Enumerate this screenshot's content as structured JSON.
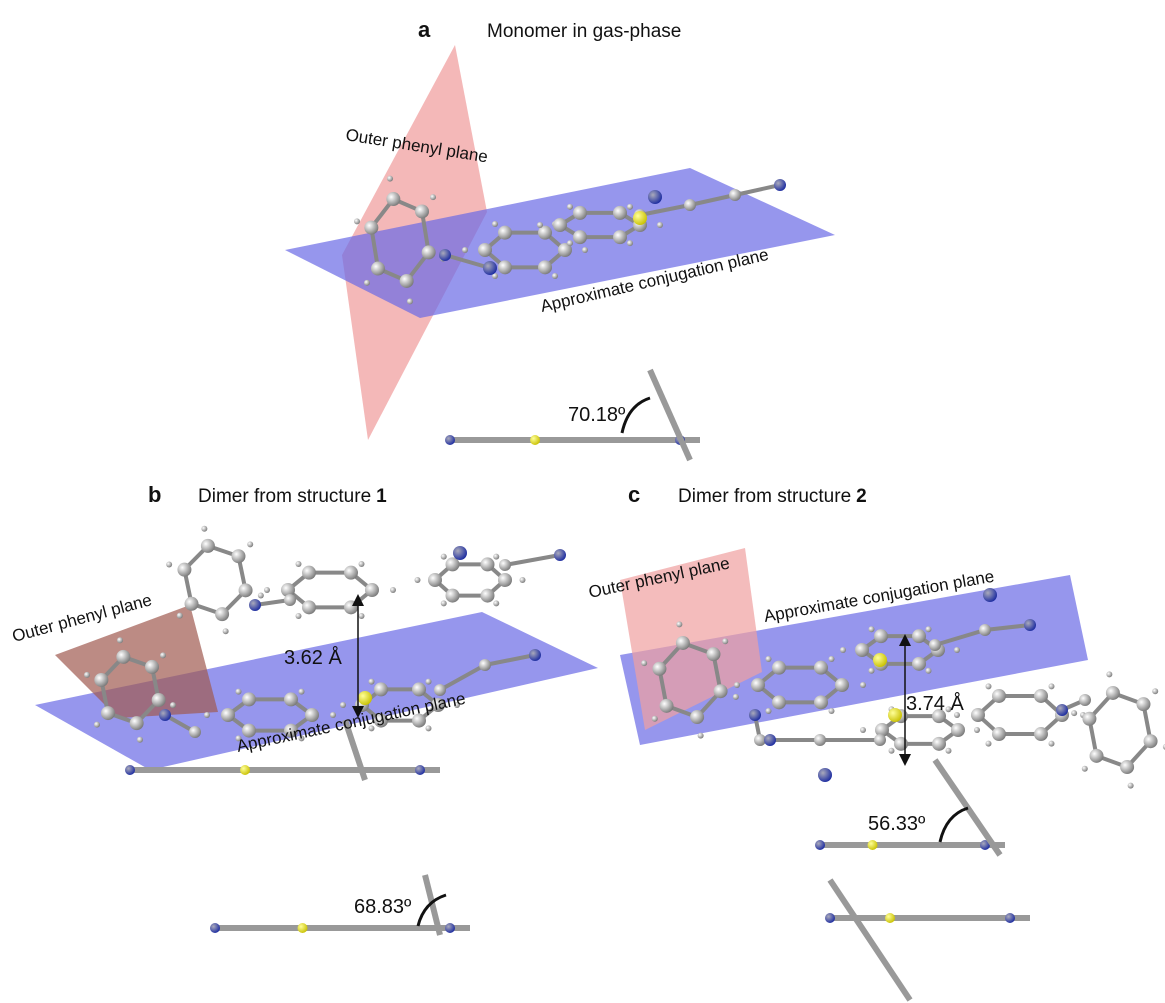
{
  "panels": [
    {
      "label": "a",
      "title": "Monomer in gas-phase",
      "outer_plane": "Outer phenyl plane",
      "conjugation_plane": "Approximate conjugation plane",
      "angle": "70.18º"
    },
    {
      "label": "b",
      "title": "Dimer from structure",
      "title_bold": "1",
      "outer_plane": "Outer phenyl plane",
      "conjugation_plane": "Approximate conjugation plane",
      "distance": "3.62 Å",
      "angle": "68.83º"
    },
    {
      "label": "c",
      "title": "Dimer from structure",
      "title_bold": "2",
      "outer_plane": "Outer phenyl plane",
      "conjugation_plane": "Approximate conjugation plane",
      "distance": "3.74 Å",
      "angle": "56.33º"
    }
  ]
}
